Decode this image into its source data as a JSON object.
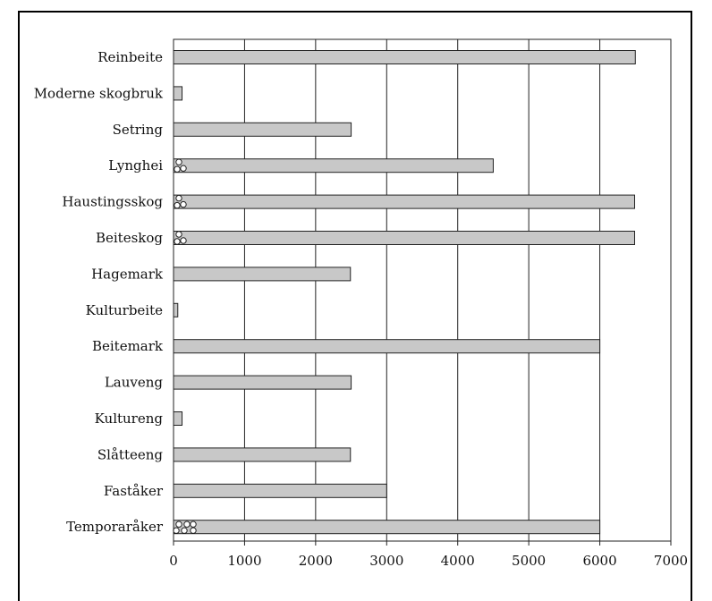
{
  "chart_data": {
    "type": "bar",
    "orientation": "horizontal",
    "title": "",
    "xlabel": "",
    "ylabel": "",
    "xlim": [
      0,
      7000
    ],
    "x_ticks": [
      0,
      1000,
      2000,
      3000,
      4000,
      5000,
      6000,
      7000
    ],
    "x_tick_labels": [
      "0",
      "1000",
      "2000",
      "3000",
      "4000",
      "5000",
      "6000",
      "7000"
    ],
    "grid": "vertical",
    "bar_color": "#c8c8c8",
    "categories": [
      "Reinbeite",
      "Moderne skogbruk",
      "Setring",
      "Lynghei",
      "Haustingsskog",
      "Beiteskog",
      "Hagemark",
      "Kulturbeite",
      "Beitemark",
      "Lauveng",
      "Kultureng",
      "Slåtteeng",
      "Faståker",
      "Temporaråker"
    ],
    "values": [
      6500,
      120,
      2500,
      4500,
      6490,
      6490,
      2490,
      60,
      6000,
      2500,
      120,
      2490,
      3000,
      6000
    ],
    "circle_markers": {
      "Lynghei": 3,
      "Haustingsskog": 3,
      "Beiteskog": 3,
      "Temporaråker": 6
    }
  }
}
